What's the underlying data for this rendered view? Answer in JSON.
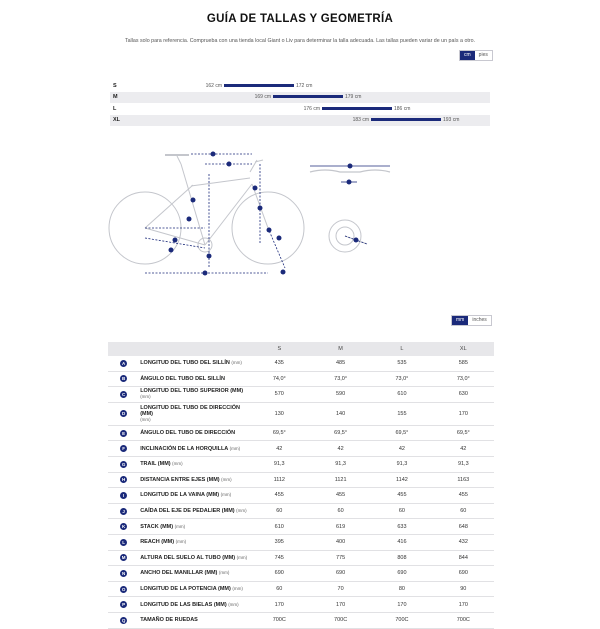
{
  "title": "GUÍA DE TALLAS Y GEOMETRÍA",
  "subtitle": "Tallas solo para referencia. Comprueba con una tienda local Giant o Liv para determinar la talla adecuada. Las tallas pueden variar de un país a otro.",
  "height_units": {
    "active": "cm",
    "other": "pies"
  },
  "geometry_units": {
    "active": "mm",
    "other": "inches"
  },
  "accent_color": "#1b2a7a",
  "size_chart": [
    {
      "size": "S",
      "min": "162 cm",
      "max": "172 cm",
      "min_val": 162,
      "max_val": 172
    },
    {
      "size": "M",
      "min": "169 cm",
      "max": "179 cm",
      "min_val": 169,
      "max_val": 179
    },
    {
      "size": "L",
      "min": "176 cm",
      "max": "186 cm",
      "min_val": 176,
      "max_val": 186
    },
    {
      "size": "XL",
      "min": "183 cm",
      "max": "193 cm",
      "min_val": 183,
      "max_val": 193
    }
  ],
  "geometry_table": {
    "columns": [
      "S",
      "M",
      "L",
      "XL"
    ],
    "rows": [
      {
        "key": "A",
        "name": "LONGITUD DEL TUBO DEL SILLÍN",
        "unit": "(mm)",
        "values": [
          "435",
          "485",
          "535",
          "585"
        ]
      },
      {
        "key": "B",
        "name": "ÁNGULO DEL TUBO DEL SILLÍN",
        "unit": "",
        "values": [
          "74,0°",
          "73,0°",
          "73,0°",
          "73,0°"
        ]
      },
      {
        "key": "C",
        "name": "LONGITUD DEL TUBO SUPERIOR (MM)",
        "unit": "(mm)",
        "values": [
          "570",
          "590",
          "610",
          "630"
        ]
      },
      {
        "key": "D",
        "name": "LONGITUD DEL TUBO DE DIRECCIÓN (MM)",
        "unit": "(mm)",
        "values": [
          "130",
          "140",
          "155",
          "170"
        ]
      },
      {
        "key": "E",
        "name": "ÁNGULO DEL TUBO DE DIRECCIÓN",
        "unit": "",
        "values": [
          "69,5°",
          "69,5°",
          "69,5°",
          "69,5°"
        ]
      },
      {
        "key": "F",
        "name": "INCLINACIÓN DE LA HORQUILLA",
        "unit": "(mm)",
        "values": [
          "42",
          "42",
          "42",
          "42"
        ]
      },
      {
        "key": "G",
        "name": "TRAIL (MM)",
        "unit": "(mm)",
        "values": [
          "91,3",
          "91,3",
          "91,3",
          "91,3"
        ]
      },
      {
        "key": "H",
        "name": "DISTANCIA ENTRE EJES (MM)",
        "unit": "(mm)",
        "values": [
          "1112",
          "1121",
          "1142",
          "1163"
        ]
      },
      {
        "key": "I",
        "name": "LONGITUD DE LA VAINA (MM)",
        "unit": "(mm)",
        "values": [
          "455",
          "455",
          "455",
          "455"
        ]
      },
      {
        "key": "J",
        "name": "CAÍDA DEL EJE DE PEDALIER (MM)",
        "unit": "(mm)",
        "values": [
          "60",
          "60",
          "60",
          "60"
        ]
      },
      {
        "key": "K",
        "name": "STACK (MM)",
        "unit": "(mm)",
        "values": [
          "610",
          "619",
          "633",
          "648"
        ]
      },
      {
        "key": "L",
        "name": "REACH (MM)",
        "unit": "(mm)",
        "values": [
          "395",
          "400",
          "416",
          "432"
        ]
      },
      {
        "key": "M",
        "name": "ALTURA DEL SUELO AL TUBO (MM)",
        "unit": "(mm)",
        "values": [
          "745",
          "775",
          "808",
          "844"
        ]
      },
      {
        "key": "N",
        "name": "ANCHO DEL MANILLAR (MM)",
        "unit": "(mm)",
        "values": [
          "690",
          "690",
          "690",
          "690"
        ]
      },
      {
        "key": "O",
        "name": "LONGITUD DE LA POTENCIA (MM)",
        "unit": "(mm)",
        "values": [
          "60",
          "70",
          "80",
          "90"
        ]
      },
      {
        "key": "P",
        "name": "LONGITUD DE LAS BIELAS (MM)",
        "unit": "(mm)",
        "values": [
          "170",
          "170",
          "170",
          "170"
        ]
      },
      {
        "key": "Q",
        "name": "TAMAÑO DE RUEDAS",
        "unit": "",
        "values": [
          "700C",
          "700C",
          "700C",
          "700C"
        ]
      }
    ]
  }
}
